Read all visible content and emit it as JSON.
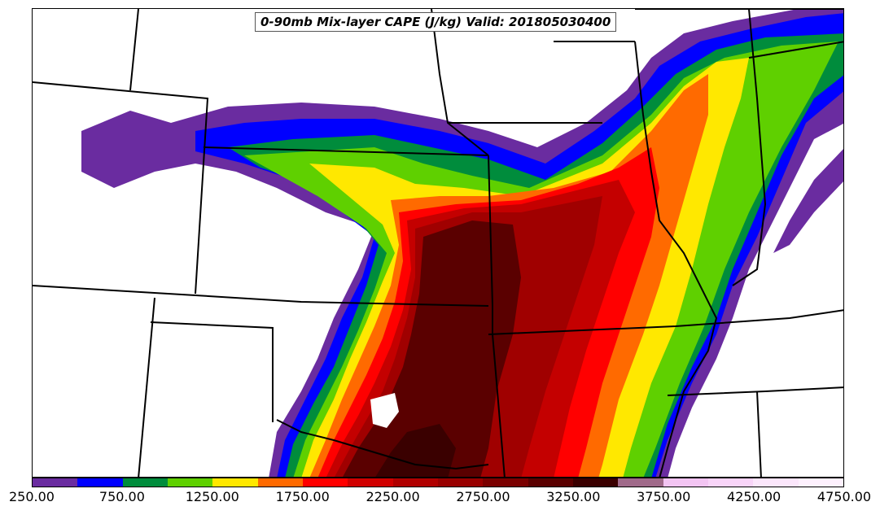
{
  "title": "0-90mb Mix-layer CAPE (J/kg) Valid: 201805030400",
  "colorbar": {
    "colors": [
      "#6a2ca0",
      "#0000ff",
      "#008c3c",
      "#5fd000",
      "#ffe800",
      "#ff6a00",
      "#ff0000",
      "#d00000",
      "#b00000",
      "#980000",
      "#7a0000",
      "#5a0000",
      "#3a0000",
      "#a06a8a",
      "#f2c4f2",
      "#f8d4f8",
      "#fbe6fb",
      "#fdf0fd"
    ],
    "tick_labels": [
      "250.00",
      "750.00",
      "1250.00",
      "1750.00",
      "2250.00",
      "2750.00",
      "3250.00",
      "3750.00",
      "4250.00",
      "4750.00"
    ]
  },
  "map": {
    "variable": "0-90mb Mix-layer CAPE",
    "units": "J/kg",
    "valid": "201805030400"
  }
}
